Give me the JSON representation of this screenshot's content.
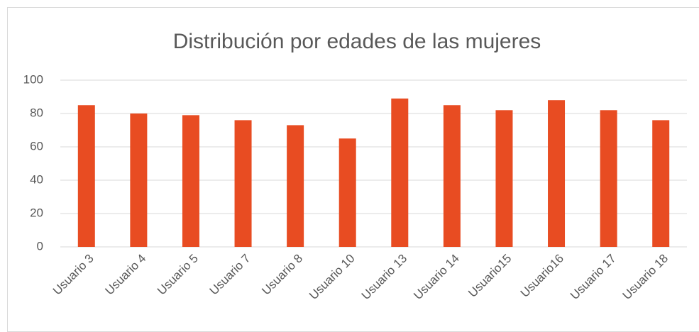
{
  "chart_data": {
    "type": "bar",
    "title": "Distribución por edades de las mujeres",
    "categories": [
      "Usuario 3",
      "Usuario 4",
      "Usuario 5",
      "Usuario 7",
      "Usuario 8",
      "Usuario 10",
      "Usuario 13",
      "Usuario 14",
      "Usuario15",
      "Usuario16",
      "Usuario 17",
      "Usuario 18"
    ],
    "values": [
      85,
      80,
      79,
      76,
      73,
      65,
      89,
      85,
      82,
      88,
      82,
      76
    ],
    "color": "#e84c22",
    "ylim": [
      0,
      100
    ],
    "yticks": [
      0,
      20,
      40,
      60,
      80,
      100
    ],
    "grid": true
  }
}
